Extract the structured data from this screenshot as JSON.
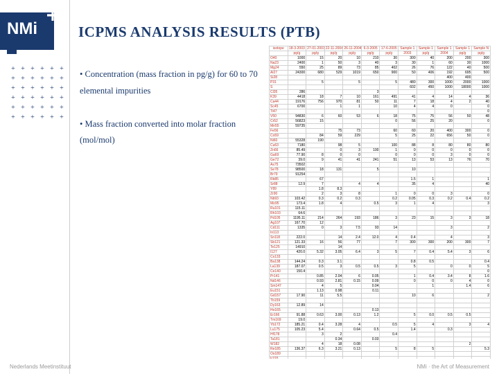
{
  "title": "ICPMS ANALYSIS RESULTS (PTB)",
  "bullet1": "• Concentration (mass fraction in pg/g) for 60 to 70 elemental impurities",
  "bullet2": "• Mass fraction converted into molar fraction (mol/mol)",
  "footer_left": "Nederlands Meetinstituut",
  "footer_right": "NMi · the Art of Measurement",
  "table": {
    "headers": [
      "isotope",
      "18-3-2003",
      "27-01-2003",
      "22-11-2004",
      "26-11-2004",
      "6-3-2005",
      "17-6-2005",
      "Sample 1",
      "Sample 1",
      "Sample 1",
      "Sample 1",
      "Sample N"
    ],
    "subheaders": [
      "",
      "pg/g",
      "pg/g",
      "pg/g",
      "pg/g",
      "pg/g",
      "pg/g",
      "2003",
      "pg/g",
      "2004",
      "pg/g",
      "pg/g"
    ],
    "rows": [
      [
        "O40",
        "1000",
        "15",
        "20",
        "10",
        "210",
        "30",
        "300",
        "40",
        "200",
        "200",
        "300"
      ],
      [
        "Na23",
        "2400",
        "1",
        "50",
        "3",
        "40",
        "3",
        "30",
        "1",
        "60",
        "30",
        "1000"
      ],
      [
        "Mg24",
        "550",
        "25",
        "89",
        "73",
        "85",
        "402",
        "26",
        "76",
        "122",
        "40",
        "500"
      ],
      [
        "Al27",
        "24300",
        "680",
        "529",
        "1019",
        "650",
        "900",
        "50",
        "406",
        "192",
        "695",
        "500"
      ],
      [
        "Si28",
        "",
        "",
        "",
        "",
        "",
        "",
        "",
        "",
        "400",
        "400",
        ""
      ],
      [
        "P31",
        "",
        "5",
        "",
        "5",
        "",
        "5",
        "480",
        "300",
        "1000",
        "2000",
        "1000"
      ],
      [
        "S",
        "",
        "",
        "",
        "",
        "",
        "",
        "602",
        "450",
        "1000",
        "18000",
        "1000"
      ],
      [
        "Cl35",
        "286",
        "",
        "",
        "",
        "3",
        "",
        "",
        "",
        "",
        "",
        ""
      ],
      [
        "K39",
        "4418",
        "18",
        "7",
        "10",
        "161",
        "491",
        "41",
        "4",
        "14",
        "4",
        "36"
      ],
      [
        "Ca44",
        "19176",
        "756",
        "970",
        "81",
        "50",
        "11",
        "7",
        "18",
        "4",
        "2",
        "40"
      ],
      [
        "Sc45",
        "6700",
        "",
        "1",
        "1",
        "",
        "10",
        "4",
        "4",
        "0",
        "",
        "0"
      ],
      [
        "Ti47",
        "",
        "",
        "",
        "",
        "",
        "",
        "",
        "",
        "",
        "",
        "0"
      ],
      [
        "V50",
        "94830",
        "6",
        "60",
        "53",
        "6",
        "18",
        "75",
        "75",
        "56",
        "50",
        "48"
      ],
      [
        "Cr52",
        "56823",
        "15",
        "",
        "",
        "",
        "0",
        "56",
        "25",
        "20",
        "",
        "0"
      ],
      [
        "Mn55",
        "59735",
        "",
        "",
        "",
        "",
        "",
        "",
        "",
        "",
        "",
        ""
      ],
      [
        "Fe56",
        "",
        "",
        "75",
        "73",
        "",
        "60",
        "60",
        "20",
        "400",
        "300",
        "0"
      ],
      [
        "Co59",
        "",
        "84",
        "59",
        "229",
        "",
        "5",
        "25",
        "22",
        "656",
        "50",
        "0"
      ],
      [
        "Ni60",
        "55328",
        "190",
        "",
        "",
        "",
        "",
        "",
        "",
        "",
        "",
        ""
      ],
      [
        "Cu63",
        "7180",
        "",
        "98",
        "5",
        "",
        "100",
        "88",
        "8",
        "80",
        "80",
        "80"
      ],
      [
        "Zn66",
        "85.49",
        "",
        "0",
        "3",
        "100",
        "1",
        "0",
        "0",
        "0",
        "0",
        "0"
      ],
      [
        "Ga69",
        "77.90",
        "8",
        "0",
        "0",
        "",
        "0",
        "0",
        "0",
        "3",
        "0",
        "0"
      ],
      [
        "Ge72",
        "39.0",
        "9",
        "41",
        "41",
        "241",
        "51",
        "13",
        "53",
        "13",
        "76",
        "70"
      ],
      [
        "As75",
        "73502",
        "",
        "",
        "",
        "",
        "",
        "",
        "",
        "",
        "",
        ""
      ],
      [
        "Se78",
        "98500",
        "18",
        "131",
        "",
        "5",
        "",
        "10",
        "",
        "",
        "",
        ""
      ],
      [
        "Br79",
        "91254",
        "",
        "",
        "",
        "",
        "",
        "",
        "",
        "",
        "",
        ""
      ],
      [
        "Rb85",
        "",
        "67",
        "",
        "",
        "",
        "",
        "1.5",
        "1",
        "",
        "",
        "1"
      ],
      [
        "Sr88",
        "12.9",
        "7",
        "",
        "4",
        "4",
        "",
        "35",
        "4",
        "",
        "",
        "40"
      ],
      [
        "Y89",
        "",
        "1.8",
        "8.3",
        "",
        "",
        "",
        "",
        "",
        "",
        "",
        ""
      ],
      [
        "Zr90",
        "",
        "2",
        "3",
        "8",
        "",
        "1",
        "0",
        "0",
        "3",
        "",
        "0"
      ],
      [
        "Nb93",
        "103.42",
        "0.3",
        "0.2",
        "0.3",
        "",
        "0.2",
        "0.05",
        "0.3",
        "0.2",
        "0.4",
        "0.2"
      ],
      [
        "Mo95",
        "173.4",
        "1.8",
        "4",
        "",
        "0.5",
        "3",
        "1",
        "4",
        "",
        "",
        "3"
      ],
      [
        "Ru101",
        "115.11",
        "",
        "",
        "",
        "",
        "",
        "",
        "",
        "",
        "",
        ""
      ],
      [
        "Rh103",
        "64.6",
        "",
        "",
        "",
        "",
        "",
        "",
        "",
        "",
        "",
        ""
      ],
      [
        "Pd105",
        "1195.11",
        "214",
        "264",
        "193",
        "186",
        "3",
        "23",
        "15",
        "3",
        "3",
        "18"
      ],
      [
        "Ag107",
        "167.70",
        "12",
        "",
        "",
        "",
        "",
        "",
        "",
        "",
        "",
        ""
      ],
      [
        "Cd111",
        "1335",
        "0",
        "3",
        "7.5",
        "93",
        "14",
        "",
        "",
        "3",
        "",
        "2"
      ],
      [
        "In113",
        "",
        "",
        "",
        "",
        "",
        "",
        "",
        "",
        "",
        "",
        ""
      ],
      [
        "Sn118",
        "222.0",
        "",
        "14",
        "2.4",
        "12.0",
        "4",
        "0.4",
        "",
        "4",
        "",
        "3"
      ],
      [
        "Sb121",
        "121.33",
        "16",
        "56",
        "77",
        "",
        "7",
        "300",
        "300",
        "200",
        "300",
        "7"
      ],
      [
        "Te125",
        "14910",
        "",
        "14",
        "",
        "",
        "",
        "",
        "",
        "",
        "",
        ""
      ],
      [
        "I127",
        "420.0",
        "5.32",
        "3.05",
        "6.4",
        "3",
        "5",
        "7",
        "0.4",
        "5.4",
        "3",
        "6"
      ],
      [
        "Cs133",
        "",
        "",
        "",
        "",
        "",
        "",
        "",
        "",
        "",
        "",
        ""
      ],
      [
        "Ba138",
        "144.24",
        "0.3",
        "3.1",
        "",
        "",
        "",
        "0.8",
        "0.5",
        "",
        "",
        "0.4"
      ],
      [
        "La139",
        "187.07",
        "0.5",
        "3",
        "0.5",
        "0.5",
        "3",
        "5",
        "",
        "0",
        "0",
        "5"
      ],
      [
        "Ce140",
        "150.4",
        "",
        "",
        "",
        "",
        "",
        "",
        "",
        "",
        "",
        "0"
      ],
      [
        "Pr141",
        "",
        "0.85",
        "2.04",
        "6",
        "0.05",
        "",
        "1",
        "0.4",
        "3.4",
        "8",
        "1.6"
      ],
      [
        "Nd146",
        "",
        "0.93",
        "2.81",
        "0.15",
        "0.09",
        "",
        "0",
        "0",
        "0",
        "4",
        "0"
      ],
      [
        "Sm147",
        "",
        "4",
        "5",
        "",
        "0.04",
        "",
        "",
        "1",
        "",
        "1.4",
        "6"
      ],
      [
        "Eu151",
        "",
        "1.13",
        "0.98",
        "",
        "0.11",
        "",
        "",
        "",
        "",
        "",
        ""
      ],
      [
        "Gd157",
        "17.90",
        "11",
        "5.5",
        "",
        "",
        "",
        "10",
        "6",
        "",
        "",
        "2"
      ],
      [
        "Tb159",
        "",
        "",
        "",
        "",
        "",
        "",
        "",
        "",
        "",
        "",
        ""
      ],
      [
        "Dy163",
        "12.89",
        "14",
        "",
        "",
        "",
        "",
        "",
        "",
        "",
        "",
        ""
      ],
      [
        "Ho165",
        "",
        "",
        "",
        "",
        "0.13",
        "",
        "",
        "",
        "",
        "",
        ""
      ],
      [
        "Er166",
        "91.88",
        "0.63",
        "3.00",
        "0.13",
        "1.2",
        "",
        "5",
        "0.0",
        "0.5",
        "0.5",
        ""
      ],
      [
        "Tm169",
        "19.0",
        "",
        "",
        "",
        "",
        "",
        "",
        "",
        "",
        "",
        ""
      ],
      [
        "Yb172",
        "185.21",
        "0.4",
        "3.28",
        "4",
        "",
        "0.5",
        "5",
        "4",
        "",
        "3",
        "4"
      ],
      [
        "Lu175",
        "105.23",
        "5.4",
        "",
        "0.64",
        "0.5",
        "",
        "1.4",
        "",
        "0.3",
        "",
        ""
      ],
      [
        "Hf178",
        "",
        "3",
        "2",
        "",
        "",
        "0.4",
        "",
        "",
        "",
        "",
        ""
      ],
      [
        "Ta181",
        "",
        "",
        "0.34",
        "",
        "0.03",
        "",
        "",
        "",
        "",
        "",
        ""
      ],
      [
        "W182",
        "",
        "4",
        "18",
        "0.08",
        "",
        "",
        "",
        "",
        "",
        "2",
        ""
      ],
      [
        "Re185",
        "136.37",
        "6.3",
        "3.21",
        "0.13",
        "",
        "5",
        "8",
        "5",
        "",
        "",
        "5.3"
      ],
      [
        "Os189",
        "",
        "",
        "",
        "",
        "",
        "",
        "",
        "",
        "",
        "",
        ""
      ],
      [
        "Ir193",
        "",
        "",
        "",
        "",
        "",
        "",
        "",
        "",
        "",
        "",
        ""
      ],
      [
        "Pt195",
        "204.38",
        "6.90",
        "3.06",
        "0.15",
        "6.1",
        "6.1",
        "3",
        "32",
        "6",
        "",
        "0"
      ],
      [
        "Au197",
        "",
        "",
        "",
        "",
        "",
        "",
        "",
        "",
        "",
        "",
        ""
      ],
      [
        "Hg202",
        "8980",
        "0.6",
        "32",
        "0.32",
        "0.5",
        "0",
        "",
        "",
        "",
        "5",
        "0"
      ],
      [
        "Tl205",
        "22019",
        "6.38",
        "308",
        "8.02",
        "2.5",
        "167",
        "86.3",
        "0.6",
        "0",
        "",
        "0"
      ],
      [
        "Pb208",
        "",
        "",
        "",
        "",
        "",
        "",
        "",
        "",
        "",
        "",
        "2300"
      ]
    ]
  }
}
